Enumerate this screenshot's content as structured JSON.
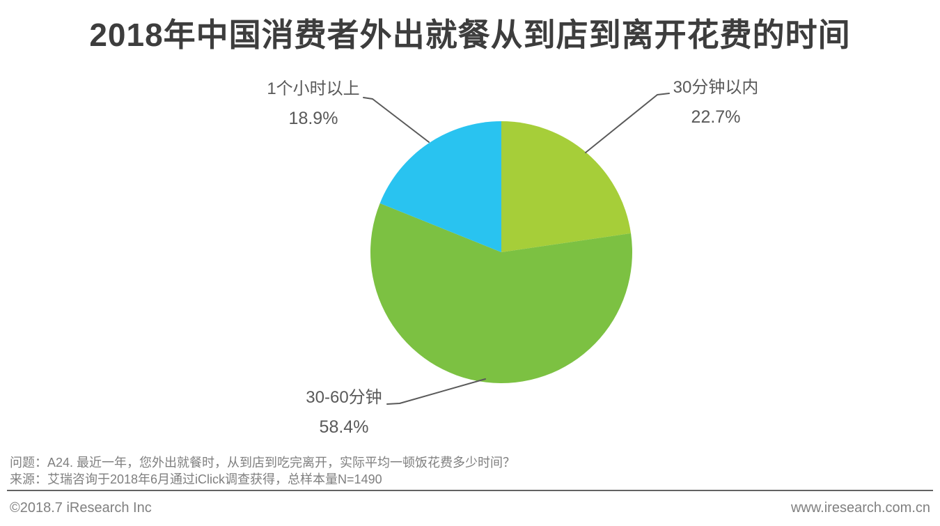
{
  "title": "2018年中国消费者外出就餐从到店到离开花费的时间",
  "chart_data": {
    "type": "pie",
    "title": "2018年中国消费者外出就餐从到店到离开花费的时间",
    "unit": "%",
    "start_angle_deg": 0,
    "direction": "clockwise",
    "legend_position": "none",
    "labels_outside_with_leader_lines": true,
    "slices": [
      {
        "label": "30分钟以内",
        "value": 22.7,
        "display": "22.7%",
        "color": "#a6ce39"
      },
      {
        "label": "30-60分钟",
        "value": 58.4,
        "display": "58.4%",
        "color": "#7cc142"
      },
      {
        "label": "1个小时以上",
        "value": 18.9,
        "display": "18.9%",
        "color": "#29c3f0"
      }
    ]
  },
  "notes": {
    "question": "问题：A24. 最近一年，您外出就餐时，从到店到吃完离开，实际平均一顿饭花费多少时间？",
    "source": "来源：艾瑞咨询于2018年6月通过iClick调查获得，总样本量N=1490"
  },
  "footer": {
    "copyright": "©2018.7 iResearch Inc",
    "website": "www.iresearch.com.cn"
  },
  "colors": {
    "background": "#ffffff",
    "title_text": "#3d3d3d",
    "label_text": "#595959",
    "leader_line": "#595959",
    "note_text": "#7f7f7f",
    "footer_text": "#808080",
    "bottom_rule": "#636363"
  }
}
